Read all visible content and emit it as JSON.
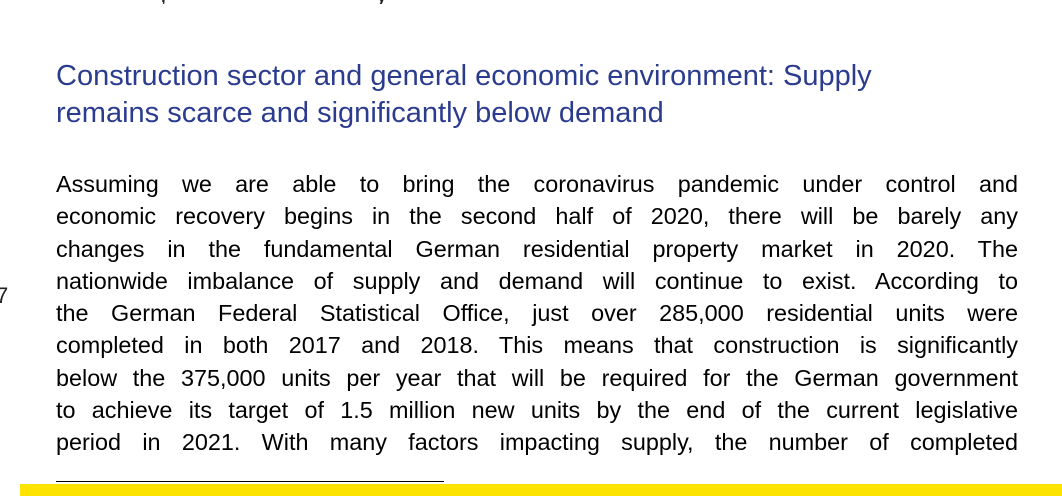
{
  "top_fragment": {
    "left": ",",
    "right": "y"
  },
  "margin_mark": "7",
  "heading": {
    "line1": "Construction sector and general economic environment: Supply",
    "line2": "remains scarce and significantly below demand"
  },
  "body": {
    "lines": [
      "Assuming we are able to bring the coronavirus pandemic under control and",
      "economic recovery begins in the second half of 2020, there will be barely any",
      "changes in the fundamental German residential property market in 2020. The",
      "nationwide imbalance of supply and demand will continue to exist. According to",
      "the German Federal Statistical Office, just over 285,000 residential units were",
      "completed in both 2017 and 2018. This means that construction is significantly",
      "below the 375,000 units per year that will be required for the German government",
      "to achieve its target of 1.5 million new units by the end of the current legislative",
      "period in 2021. With many factors impacting supply, the number of completed"
    ]
  },
  "colors": {
    "heading": "#2b3c8f",
    "text": "#000000",
    "band": "#fde400"
  }
}
